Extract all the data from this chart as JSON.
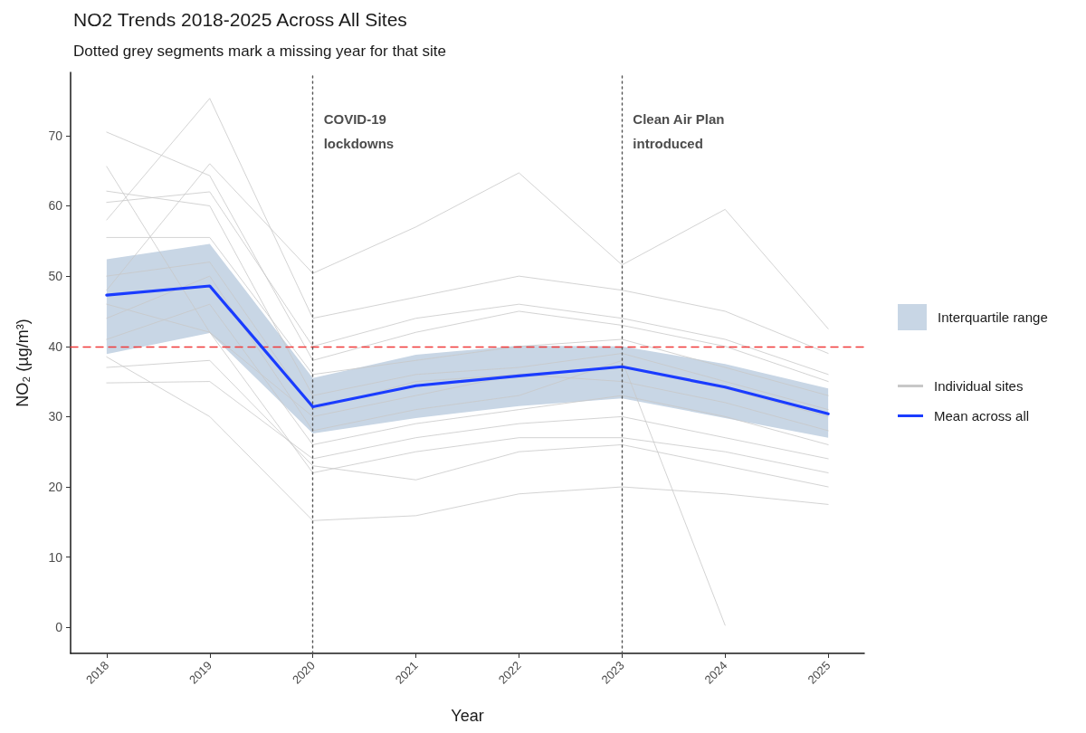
{
  "chart_data": {
    "type": "line",
    "title": "NO2 Trends 2018-2025 Across All Sites",
    "subtitle": "Dotted grey segments mark a missing year for that site",
    "xlabel": "Year",
    "ylabel": "NO₂ (µg/m³)",
    "x": [
      2018,
      2019,
      2020,
      2021,
      2022,
      2023,
      2024,
      2025
    ],
    "xlim": [
      2017.65,
      2025.35
    ],
    "xticks": [
      2018,
      2019,
      2020,
      2021,
      2022,
      2023,
      2024,
      2025
    ],
    "ylim": [
      -3.7,
      79
    ],
    "yticks": [
      0,
      10,
      20,
      30,
      40,
      50,
      60,
      70
    ],
    "series": [
      {
        "name": "Interquartile range",
        "type": "area",
        "color": "#c8d6e5",
        "values": [
          null,
          null,
          null,
          null,
          null,
          null,
          null,
          null
        ],
        "lower": [
          38.9,
          41.9,
          27.6,
          29.8,
          31.5,
          32.6,
          29.8,
          27.0
        ],
        "upper": [
          52.4,
          54.6,
          35.5,
          38.8,
          40.1,
          40.0,
          37.5,
          34.0
        ]
      },
      {
        "name": "Individual sites",
        "color": "#c8c8c8",
        "values": [
          70.5,
          64.3,
          38.0,
          42.0,
          45.0,
          43.0,
          40.0,
          35.0
        ]
      },
      {
        "color": "#c8c8c8",
        "values": [
          58.0,
          75.3,
          44.0,
          47.0,
          50.0,
          48.0,
          45.0,
          39.0
        ]
      },
      {
        "color": "#c8c8c8",
        "values": [
          65.6,
          42.0,
          30.0,
          33.0,
          36.0,
          35.0,
          32.0,
          28.0
        ]
      },
      {
        "color": "#c8c8c8",
        "values": [
          34.8,
          35.0,
          24.0,
          27.0,
          29.0,
          30.0,
          27.0,
          24.0
        ]
      },
      {
        "color": "#c8c8c8",
        "values": [
          55.5,
          55.5,
          36.0,
          38.0,
          40.0,
          41.0,
          37.0,
          33.0
        ]
      },
      {
        "color": "#c8c8c8",
        "values": [
          38.5,
          30.0,
          15.2,
          15.9,
          19.0,
          20.0,
          19.0,
          17.5
        ]
      },
      {
        "color": "#c8c8c8",
        "values": [
          48.0,
          66.0,
          50.4,
          57.0,
          64.7,
          51.6,
          59.5,
          42.5
        ]
      },
      {
        "color": "#c8c8c8",
        "values": [
          44.0,
          50.0,
          28.0,
          31.0,
          33.0,
          38.0,
          0.3,
          null
        ]
      },
      {
        "color": "#c8c8c8",
        "values": [
          62.1,
          60.0,
          33.0,
          36.0,
          37.0,
          39.0,
          35.0,
          31.0
        ]
      },
      {
        "color": "#c8c8c8",
        "values": [
          41.0,
          46.0,
          26.0,
          29.0,
          31.0,
          33.0,
          30.0,
          26.0
        ]
      },
      {
        "color": "#c8c8c8",
        "values": [
          60.5,
          62.0,
          40.0,
          44.0,
          46.0,
          44.0,
          41.0,
          36.0
        ]
      },
      {
        "color": "#c8c8c8",
        "values": [
          46.0,
          42.0,
          22.0,
          25.0,
          27.0,
          27.0,
          25.0,
          22.0
        ]
      },
      {
        "color": "#c8c8c8",
        "values": [
          50.0,
          52.0,
          31.0,
          35.0,
          36.0,
          37.0,
          34.0,
          30.0
        ]
      },
      {
        "color": "#c8c8c8",
        "values": [
          37.0,
          38.0,
          23.0,
          21.0,
          25.0,
          26.0,
          23.0,
          20.0
        ]
      },
      {
        "name": "Mean across all",
        "color": "#1a3cff",
        "values": [
          47.3,
          48.6,
          31.4,
          34.4,
          35.8,
          37.1,
          34.2,
          30.4
        ]
      }
    ],
    "ref_lines": [
      {
        "axis": "y",
        "value": 40,
        "color": "#f03a3a",
        "line_style": "dashed"
      },
      {
        "axis": "x",
        "value": 2020,
        "label": "COVID-19\nlockdowns",
        "color": "#555555",
        "line_style": "dotted"
      },
      {
        "axis": "x",
        "value": 2023,
        "label": "Clean Air Plan\nintroduced",
        "color": "#555555",
        "line_style": "dotted"
      }
    ],
    "legend": "right",
    "marker": "none",
    "line_style": "solid"
  }
}
